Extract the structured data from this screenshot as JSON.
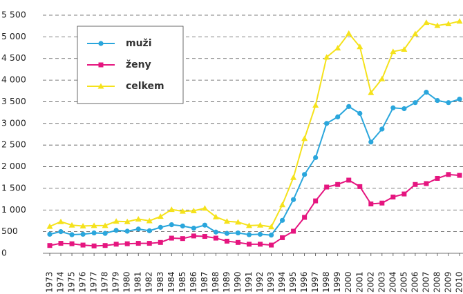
{
  "chart_data": {
    "type": "line",
    "x": [
      1973,
      1974,
      1975,
      1976,
      1977,
      1978,
      1979,
      1980,
      1981,
      1982,
      1983,
      1984,
      1985,
      1986,
      1987,
      1988,
      1989,
      1990,
      1991,
      1992,
      1993,
      1994,
      1995,
      1996,
      1997,
      1998,
      1999,
      2000,
      2001,
      2002,
      2003,
      2004,
      2005,
      2006,
      2007,
      2008,
      2009,
      2010
    ],
    "xlim": [
      1973,
      2010
    ],
    "series": [
      {
        "name": "muži",
        "color": "#2aa6dc",
        "marker": "circle",
        "values": [
          440,
          500,
          430,
          440,
          470,
          460,
          530,
          510,
          560,
          520,
          600,
          660,
          630,
          580,
          650,
          490,
          460,
          470,
          430,
          440,
          420,
          760,
          1240,
          1820,
          2210,
          3000,
          3150,
          3390,
          3230,
          2570,
          2870,
          3360,
          3340,
          3480,
          3720,
          3530,
          3480,
          3560
        ]
      },
      {
        "name": "ženy",
        "color": "#e5157f",
        "marker": "square",
        "values": [
          180,
          230,
          220,
          190,
          170,
          180,
          210,
          220,
          230,
          230,
          250,
          350,
          340,
          400,
          390,
          350,
          280,
          250,
          210,
          210,
          190,
          360,
          510,
          830,
          1210,
          1530,
          1590,
          1690,
          1540,
          1140,
          1160,
          1300,
          1370,
          1590,
          1610,
          1730,
          1820,
          1800
        ]
      },
      {
        "name": "celkem",
        "color": "#f5e21b",
        "marker": "triangle",
        "values": [
          620,
          730,
          650,
          630,
          640,
          640,
          740,
          730,
          790,
          750,
          850,
          1010,
          970,
          980,
          1040,
          840,
          740,
          720,
          640,
          650,
          610,
          1120,
          1750,
          2650,
          3420,
          4530,
          4740,
          5080,
          4770,
          3710,
          4030,
          4660,
          4710,
          5070,
          5330,
          5260,
          5300,
          5360
        ]
      }
    ],
    "ylim": [
      0,
      5500
    ],
    "yticks": [
      0,
      500,
      {
        "value": 1000,
        "label": "1 000"
      },
      {
        "value": 1500,
        "label": "1 500"
      },
      {
        "value": 2000,
        "label": "2 000"
      },
      {
        "value": 2500,
        "label": "2 500"
      },
      {
        "value": 3000,
        "label": "3 000"
      },
      {
        "value": 3500,
        "label": "3 500"
      },
      {
        "value": 4000,
        "label": "4 000"
      },
      {
        "value": 4500,
        "label": "4 500"
      },
      {
        "value": 5000,
        "label": "5 000"
      },
      {
        "value": 5500,
        "label": "5 500"
      }
    ],
    "grid": true,
    "legend": "upper left"
  }
}
